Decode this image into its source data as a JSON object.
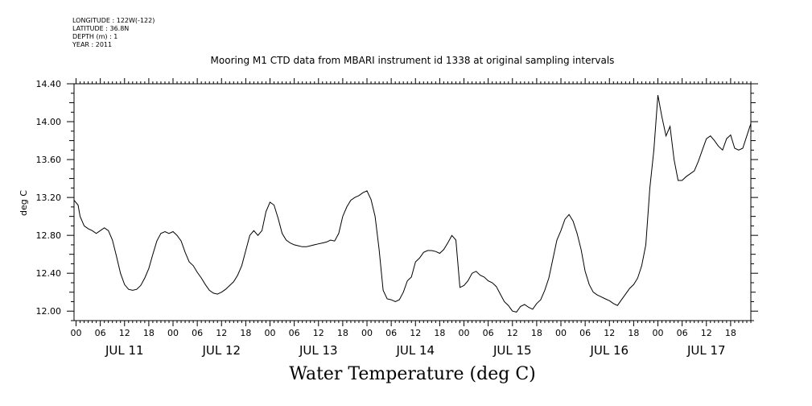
{
  "header": {
    "longitude": "LONGITUDE : 122W(-122)",
    "latitude": "LATITUDE : 36.8N",
    "depth": "DEPTH (m) : 1",
    "year": "YEAR : 2011"
  },
  "chart_data": {
    "type": "line",
    "title": "Mooring M1 CTD data from MBARI instrument id 1338 at original sampling intervals",
    "xlabel": "Water Temperature (deg C)",
    "ylabel": "deg C",
    "ylim": [
      11.9,
      14.4
    ],
    "y_ticks": [
      "12.00",
      "12.40",
      "12.80",
      "13.20",
      "13.60",
      "14.00",
      "14.40"
    ],
    "x_hour_ticks": [
      "00",
      "06",
      "12",
      "18"
    ],
    "x_days": [
      "JUL 11",
      "JUL 12",
      "JUL 13",
      "JUL 14",
      "JUL 15",
      "JUL 16",
      "JUL 17"
    ],
    "x_unit": "hours since JUL 11 00:00",
    "xlim": [
      -0.5,
      167
    ],
    "series": [
      {
        "points": [
          [
            -0.5,
            13.17
          ],
          [
            0.5,
            13.12
          ],
          [
            1,
            13.0
          ],
          [
            2,
            12.9
          ],
          [
            3,
            12.87
          ],
          [
            4,
            12.85
          ],
          [
            5,
            12.82
          ],
          [
            6,
            12.85
          ],
          [
            7,
            12.88
          ],
          [
            8,
            12.85
          ],
          [
            9,
            12.75
          ],
          [
            10,
            12.58
          ],
          [
            11,
            12.4
          ],
          [
            12,
            12.28
          ],
          [
            13,
            12.23
          ],
          [
            14,
            12.22
          ],
          [
            15,
            12.23
          ],
          [
            16,
            12.27
          ],
          [
            17,
            12.35
          ],
          [
            18,
            12.45
          ],
          [
            19,
            12.6
          ],
          [
            20,
            12.74
          ],
          [
            21,
            12.82
          ],
          [
            22,
            12.84
          ],
          [
            23,
            12.82
          ],
          [
            24,
            12.84
          ],
          [
            25,
            12.8
          ],
          [
            26,
            12.74
          ],
          [
            27,
            12.62
          ],
          [
            28,
            12.52
          ],
          [
            29,
            12.48
          ],
          [
            30,
            12.41
          ],
          [
            31,
            12.35
          ],
          [
            32,
            12.28
          ],
          [
            33,
            12.22
          ],
          [
            34,
            12.19
          ],
          [
            35,
            12.18
          ],
          [
            36,
            12.2
          ],
          [
            37,
            12.23
          ],
          [
            38,
            12.27
          ],
          [
            39,
            12.31
          ],
          [
            40,
            12.38
          ],
          [
            41,
            12.48
          ],
          [
            42,
            12.64
          ],
          [
            43,
            12.8
          ],
          [
            44,
            12.85
          ],
          [
            45,
            12.8
          ],
          [
            46,
            12.85
          ],
          [
            47,
            13.05
          ],
          [
            48,
            13.15
          ],
          [
            49,
            13.12
          ],
          [
            50,
            12.98
          ],
          [
            51,
            12.82
          ],
          [
            52,
            12.75
          ],
          [
            53,
            12.72
          ],
          [
            54,
            12.7
          ],
          [
            55,
            12.69
          ],
          [
            56,
            12.68
          ],
          [
            57,
            12.68
          ],
          [
            58,
            12.69
          ],
          [
            59,
            12.7
          ],
          [
            60,
            12.71
          ],
          [
            61,
            12.72
          ],
          [
            62,
            12.73
          ],
          [
            63,
            12.75
          ],
          [
            64,
            12.74
          ],
          [
            65,
            12.82
          ],
          [
            66,
            13.0
          ],
          [
            67,
            13.1
          ],
          [
            68,
            13.17
          ],
          [
            69,
            13.2
          ],
          [
            70,
            13.22
          ],
          [
            71,
            13.25
          ],
          [
            72,
            13.27
          ],
          [
            73,
            13.18
          ],
          [
            74,
            13.0
          ],
          [
            75,
            12.65
          ],
          [
            76,
            12.22
          ],
          [
            77,
            12.13
          ],
          [
            78,
            12.12
          ],
          [
            79,
            12.1
          ],
          [
            80,
            12.12
          ],
          [
            81,
            12.2
          ],
          [
            82,
            12.32
          ],
          [
            83,
            12.36
          ],
          [
            84,
            12.52
          ],
          [
            85,
            12.56
          ],
          [
            86,
            12.62
          ],
          [
            87,
            12.64
          ],
          [
            88,
            12.64
          ],
          [
            89,
            12.63
          ],
          [
            90,
            12.61
          ],
          [
            91,
            12.65
          ],
          [
            92,
            12.72
          ],
          [
            93,
            12.8
          ],
          [
            94,
            12.75
          ],
          [
            95,
            12.25
          ],
          [
            96,
            12.27
          ],
          [
            97,
            12.32
          ],
          [
            98,
            12.4
          ],
          [
            99,
            12.42
          ],
          [
            100,
            12.38
          ],
          [
            101,
            12.36
          ],
          [
            102,
            12.32
          ],
          [
            103,
            12.3
          ],
          [
            104,
            12.26
          ],
          [
            105,
            12.18
          ],
          [
            106,
            12.1
          ],
          [
            107,
            12.06
          ],
          [
            108,
            12.0
          ],
          [
            109,
            11.99
          ],
          [
            110,
            12.05
          ],
          [
            111,
            12.07
          ],
          [
            112,
            12.04
          ],
          [
            113,
            12.02
          ],
          [
            114,
            12.08
          ],
          [
            115,
            12.12
          ],
          [
            116,
            12.22
          ],
          [
            117,
            12.35
          ],
          [
            118,
            12.55
          ],
          [
            119,
            12.75
          ],
          [
            120,
            12.85
          ],
          [
            121,
            12.97
          ],
          [
            122,
            13.02
          ],
          [
            123,
            12.95
          ],
          [
            124,
            12.82
          ],
          [
            125,
            12.65
          ],
          [
            126,
            12.42
          ],
          [
            127,
            12.28
          ],
          [
            128,
            12.2
          ],
          [
            129,
            12.17
          ],
          [
            130,
            12.15
          ],
          [
            131,
            12.13
          ],
          [
            132,
            12.11
          ],
          [
            133,
            12.08
          ],
          [
            134,
            12.06
          ],
          [
            135,
            12.12
          ],
          [
            136,
            12.18
          ],
          [
            137,
            12.24
          ],
          [
            138,
            12.28
          ],
          [
            139,
            12.35
          ],
          [
            140,
            12.48
          ],
          [
            141,
            12.7
          ],
          [
            142,
            13.3
          ],
          [
            143,
            13.7
          ],
          [
            144,
            14.28
          ],
          [
            145,
            14.05
          ],
          [
            146,
            13.85
          ],
          [
            147,
            13.95
          ],
          [
            148,
            13.6
          ],
          [
            149,
            13.38
          ],
          [
            150,
            13.38
          ],
          [
            151,
            13.42
          ],
          [
            152,
            13.45
          ],
          [
            153,
            13.48
          ],
          [
            154,
            13.58
          ],
          [
            155,
            13.7
          ],
          [
            156,
            13.82
          ],
          [
            157,
            13.85
          ],
          [
            158,
            13.8
          ],
          [
            159,
            13.74
          ],
          [
            160,
            13.7
          ],
          [
            161,
            13.82
          ],
          [
            162,
            13.86
          ],
          [
            163,
            13.72
          ],
          [
            164,
            13.7
          ],
          [
            165,
            13.72
          ],
          [
            166,
            13.85
          ],
          [
            167,
            13.98
          ]
        ]
      }
    ]
  }
}
